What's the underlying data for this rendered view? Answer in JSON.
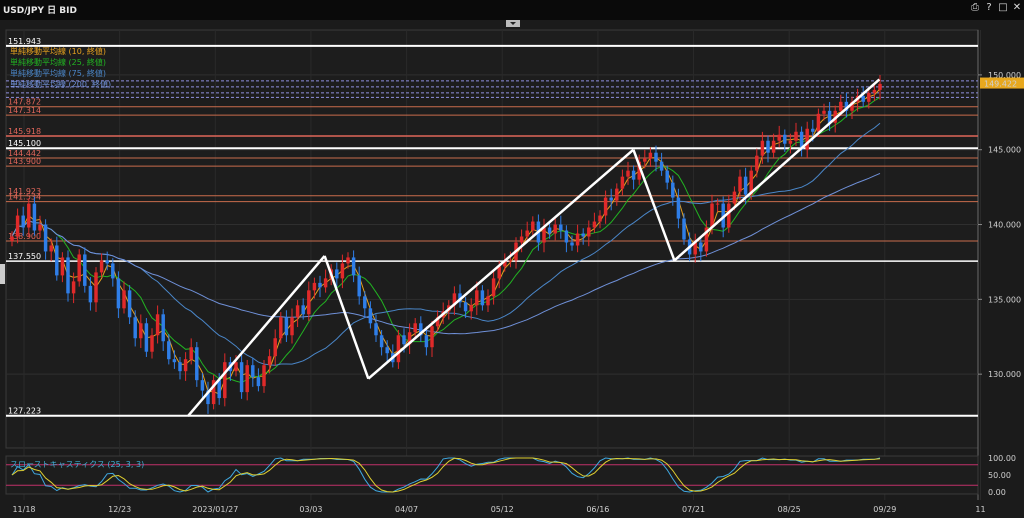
{
  "window": {
    "title": "USD/JPY 日 BID",
    "buttons": [
      "⎙",
      "?",
      "□",
      "✕"
    ]
  },
  "chart_data": {
    "type": "candlestick",
    "symbol": "USD/JPY",
    "ylim": [
      125.6,
      153.0
    ],
    "yticks": [
      "150.000",
      "145.000",
      "140.000",
      "135.000",
      "130.000"
    ],
    "ytick_values": [
      150,
      145,
      140,
      135,
      130
    ],
    "current_price": "149.422",
    "current_price_value": 149.422,
    "xticks": [
      "11/18",
      "12/23",
      "2023/01/27",
      "03/03",
      "04/07",
      "05/12",
      "06/16",
      "07/21",
      "08/25",
      "09/29",
      "11"
    ],
    "legend": [
      {
        "label": "単純移動平均線 (10, 終値)",
        "color": "#e6a11e"
      },
      {
        "label": "単純移動平均線 (25, 終値)",
        "color": "#22b322"
      },
      {
        "label": "単純移動平均線 (75, 終値)",
        "color": "#4a86c8"
      },
      {
        "label": "単純移動平均線 (200, 終値)",
        "color": "#6f90d8"
      }
    ],
    "levels": [
      {
        "label": "151.943",
        "value": 151.943,
        "color": "#ffffff",
        "style": "thick"
      },
      {
        "label": "147.872",
        "value": 147.872,
        "color": "#c96d4d",
        "style": "thin"
      },
      {
        "label": "147.314",
        "value": 147.314,
        "color": "#c96d4d",
        "style": "thin"
      },
      {
        "label": "145.918",
        "value": 145.918,
        "color": "#e0665a",
        "style": "medium"
      },
      {
        "label": "145.100",
        "value": 145.1,
        "color": "#ffffff",
        "style": "thick"
      },
      {
        "label": "144.442",
        "value": 144.442,
        "color": "#c96d4d",
        "style": "thin"
      },
      {
        "label": "143.900",
        "value": 143.9,
        "color": "#c96d4d",
        "style": "thin"
      },
      {
        "label": "141.923",
        "value": 141.923,
        "color": "#c96d4d",
        "style": "thin"
      },
      {
        "label": "141.534",
        "value": 141.534,
        "color": "#c96d4d",
        "style": "thin"
      },
      {
        "label": "138.900",
        "value": 138.9,
        "color": "#c96d4d",
        "style": "thin"
      },
      {
        "label": "137.550",
        "value": 137.55,
        "color": "#ffffff",
        "style": "medium"
      },
      {
        "label": "127.223",
        "value": 127.223,
        "color": "#ffffff",
        "style": "thick"
      }
    ],
    "dashed_levels": [
      149.6,
      149.2,
      148.8,
      148.5
    ],
    "trendlines": [
      {
        "from": [
          "2023/01/17",
          127.2
        ],
        "to": [
          "2023/03/08",
          137.9
        ]
      },
      {
        "from": [
          "2023/03/08",
          137.9
        ],
        "to": [
          "2023/03/24",
          129.7
        ]
      },
      {
        "from": [
          "2023/03/24",
          129.7
        ],
        "to": [
          "2023/06/29",
          145.0
        ]
      },
      {
        "from": [
          "2023/06/29",
          145.0
        ],
        "to": [
          "2023/07/14",
          137.6
        ]
      },
      {
        "from": [
          "2023/07/14",
          137.6
        ],
        "to": [
          "2023/09/27",
          149.7
        ]
      }
    ],
    "closes": [
      139.2,
      140.6,
      139.8,
      141.4,
      139.6,
      140.0,
      138.2,
      138.6,
      136.6,
      137.8,
      135.4,
      136.2,
      138.0,
      135.9,
      134.8,
      136.8,
      137.6,
      137.4,
      136.4,
      134.4,
      135.6,
      133.8,
      132.4,
      133.4,
      131.5,
      132.6,
      134.0,
      132.2,
      131.0,
      130.8,
      130.2,
      131.0,
      131.8,
      129.6,
      128.9,
      128.0,
      129.6,
      128.4,
      130.8,
      130.2,
      130.8,
      128.8,
      130.6,
      129.8,
      129.2,
      130.6,
      131.2,
      132.4,
      133.8,
      132.6,
      133.8,
      134.6,
      134.0,
      135.6,
      136.1,
      135.8,
      136.4,
      137.0,
      136.4,
      137.4,
      137.8,
      136.6,
      135.2,
      134.4,
      133.4,
      132.6,
      131.8,
      131.4,
      130.8,
      132.6,
      132.0,
      132.8,
      133.4,
      132.6,
      131.8,
      133.2,
      133.8,
      134.2,
      134.6,
      135.4,
      134.8,
      134.2,
      134.6,
      135.6,
      134.6,
      135.2,
      136.4,
      137.2,
      137.6,
      137.6,
      138.8,
      139.2,
      139.6,
      140.2,
      138.8,
      139.8,
      139.4,
      140.0,
      139.6,
      138.8,
      138.6,
      139.4,
      139.2,
      139.8,
      140.2,
      140.6,
      141.8,
      141.6,
      142.4,
      143.2,
      143.6,
      143.0,
      144.2,
      144.4,
      144.8,
      144.2,
      143.6,
      142.8,
      141.8,
      140.4,
      139.0,
      138.0,
      138.8,
      138.2,
      139.8,
      141.4,
      141.4,
      139.8,
      141.4,
      142.2,
      143.2,
      142.0,
      143.6,
      144.6,
      145.6,
      144.8,
      145.6,
      146.0,
      145.4,
      145.6,
      146.2,
      145.0,
      146.4,
      146.2,
      147.4,
      147.6,
      146.8,
      147.6,
      148.2,
      147.6,
      148.2,
      148.6,
      148.2,
      148.8,
      149.0,
      149.4
    ],
    "stochastic": {
      "label": "スローストキャスティクス (25, 3, 3)",
      "yticks": [
        "100.00",
        "50.00",
        "0.00"
      ],
      "ytick_values": [
        100,
        50,
        0
      ],
      "overbought": 80,
      "oversold": 20
    }
  }
}
